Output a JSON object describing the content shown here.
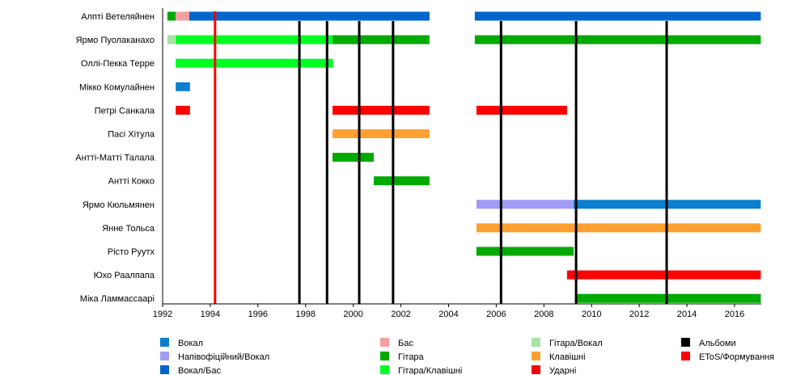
{
  "chart_data": {
    "type": "timeline",
    "xlim": [
      1992,
      2017.1
    ],
    "xticks": [
      1992,
      1994,
      1996,
      1998,
      2000,
      2002,
      2004,
      2006,
      2008,
      2010,
      2012,
      2014,
      2016
    ],
    "roles": [
      {
        "key": "vocal",
        "label": "Вокал",
        "color": "#0a7fd0"
      },
      {
        "key": "semi",
        "label": "Напівофіційний/Вокал",
        "color": "#a09cf5"
      },
      {
        "key": "vocalbass",
        "label": "Вокал/Бас",
        "color": "#0066cc"
      },
      {
        "key": "bass",
        "label": "Бас",
        "color": "#f5a0a0"
      },
      {
        "key": "guitar",
        "label": "Гітара",
        "color": "#00aa00"
      },
      {
        "key": "guitarkeys",
        "label": "Гітара/Клавішні",
        "color": "#00ff22"
      },
      {
        "key": "guitarvocal",
        "label": "Гітара/Вокал",
        "color": "#a5e3a5"
      },
      {
        "key": "keys",
        "label": "Клавішні",
        "color": "#ffa030"
      },
      {
        "key": "drums",
        "label": "Ударні",
        "color": "#ff0000"
      },
      {
        "key": "albums",
        "label": "Альбоми",
        "color": "#000000"
      },
      {
        "key": "formation",
        "label": "EToS/Формування",
        "color": "#ff0000"
      }
    ],
    "members": [
      {
        "name": "Алпті Ветеляйнен",
        "bars": [
          [
            "guitar",
            1992.2,
            1992.55
          ],
          [
            "bass",
            1992.55,
            1993.12
          ],
          [
            "vocalbass",
            1993.12,
            2003.2
          ],
          [
            "vocalbass",
            2005.1,
            2017.1
          ]
        ]
      },
      {
        "name": "Ярмо Пуолаканахо",
        "bars": [
          [
            "guitarvocal",
            1992.2,
            1992.55
          ],
          [
            "guitarkeys",
            1992.55,
            1999.13
          ],
          [
            "guitar",
            1999.13,
            2003.2
          ],
          [
            "guitar",
            2005.1,
            2017.1
          ]
        ]
      },
      {
        "name": "Оллі-Пекка Терре",
        "bars": [
          [
            "guitarkeys",
            1992.55,
            1999.15
          ]
        ]
      },
      {
        "name": "Мікко Комулайнен",
        "bars": [
          [
            "vocal",
            1992.55,
            1993.15
          ]
        ]
      },
      {
        "name": "Петрі Санкала",
        "bars": [
          [
            "drums",
            1992.55,
            1993.15
          ],
          [
            "drums",
            1999.13,
            2003.2
          ],
          [
            "drums",
            2005.17,
            2008.97
          ]
        ]
      },
      {
        "name": "Пасі Хітула",
        "bars": [
          [
            "keys",
            1999.13,
            2003.2
          ]
        ]
      },
      {
        "name": "Антті-Матті Талала",
        "bars": [
          [
            "guitar",
            1999.13,
            2000.86
          ]
        ]
      },
      {
        "name": "Антті Кокко",
        "bars": [
          [
            "guitar",
            2000.86,
            2003.2
          ]
        ]
      },
      {
        "name": "Ярмо Кюльмянен",
        "bars": [
          [
            "semi",
            2005.17,
            2009.25
          ],
          [
            "vocal",
            2009.25,
            2017.1
          ]
        ]
      },
      {
        "name": "Янне Тольса",
        "bars": [
          [
            "keys",
            2005.17,
            2017.1
          ]
        ]
      },
      {
        "name": "Рісто Руутх",
        "bars": [
          [
            "guitar",
            2005.17,
            2009.25
          ]
        ]
      },
      {
        "name": "Юхо Раалпапа",
        "bars": [
          [
            "drums",
            2008.97,
            2017.1
          ]
        ]
      },
      {
        "name": "Міка Ламмассаарі",
        "bars": [
          [
            "guitar",
            2009.35,
            2017.1
          ]
        ]
      }
    ],
    "albums": [
      1997.74,
      1998.9,
      2000.25,
      2001.67,
      2006.2,
      2009.35,
      2013.15
    ],
    "formation": [
      1994.2
    ]
  }
}
